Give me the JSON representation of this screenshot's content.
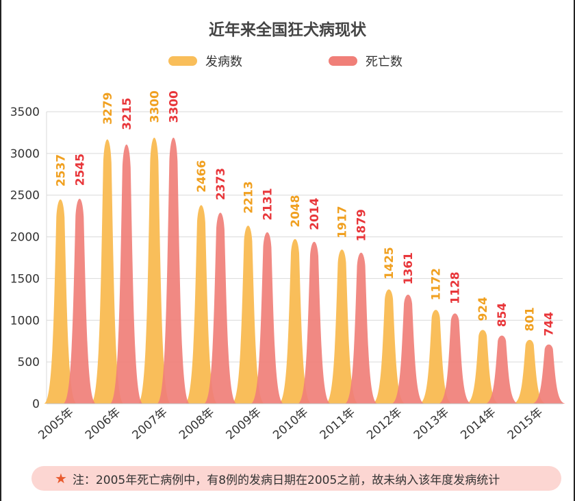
{
  "chart_data": {
    "type": "area",
    "title": "近年来全国狂犬病现状",
    "categories": [
      "2005年",
      "2006年",
      "2007年",
      "2008年",
      "2009年",
      "2010年",
      "2011年",
      "2012年",
      "2013年",
      "2014年",
      "2015年"
    ],
    "series": [
      {
        "name": "发病数",
        "values": [
          2537,
          3279,
          3300,
          2466,
          2213,
          2048,
          1917,
          1425,
          1172,
          924,
          801
        ],
        "color": "#f9be5a",
        "label_color": "#f0a020"
      },
      {
        "name": "死亡数",
        "values": [
          2545,
          3215,
          3300,
          2373,
          2131,
          2014,
          1879,
          1361,
          1128,
          854,
          744
        ],
        "color": "#f07f78",
        "label_color": "#e8363a"
      }
    ],
    "ylim": [
      0,
      3500
    ],
    "yticks": [
      0,
      500,
      1000,
      1500,
      2000,
      2500,
      3000,
      3500
    ],
    "grid": true,
    "legend": "top-center"
  },
  "note": {
    "icon": "star-icon",
    "text": "注：2005年死亡病例中，有8例的发病日期在2005之前，故未纳入该年度发病统计"
  }
}
